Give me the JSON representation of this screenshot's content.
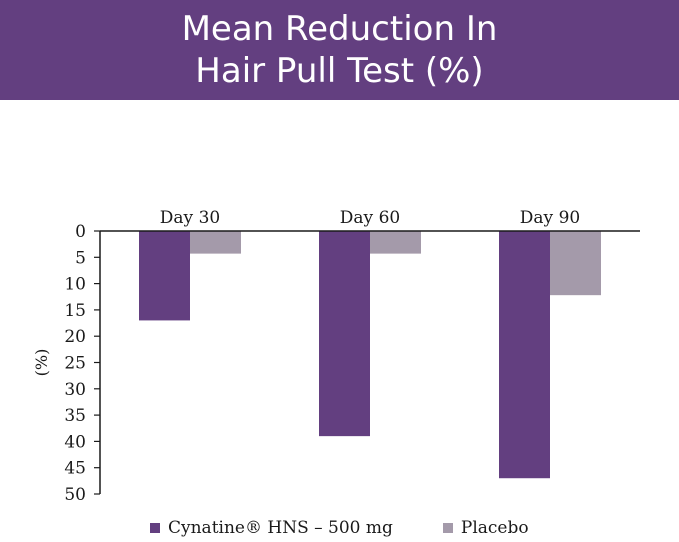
{
  "header": {
    "title_line1": "Mean Reduction In",
    "title_line2": "Hair Pull Test (%)"
  },
  "colors": {
    "banner": "#633f80",
    "series_primary": "#633f80",
    "series_placebo": "#a49aaa"
  },
  "chart_data": {
    "type": "bar",
    "title": "Mean Reduction In Hair Pull Test (%)",
    "categories": [
      "Day 30",
      "Day 60",
      "Day 90"
    ],
    "series": [
      {
        "name": "Cynatine® HNS – 500 mg",
        "values": [
          17,
          39,
          47
        ],
        "color": "#633f80"
      },
      {
        "name": "Placebo",
        "values": [
          4.3,
          4.3,
          12.2
        ],
        "color": "#a49aaa"
      }
    ],
    "ylabel": "(%)",
    "xlabel": "",
    "ylim": [
      0,
      50
    ],
    "y_inverted": true,
    "y_ticks": [
      0,
      5,
      10,
      15,
      20,
      25,
      30,
      35,
      40,
      45,
      50
    ],
    "category_labels_position": "top",
    "grid": false,
    "legend_position": "bottom"
  },
  "legend": {
    "items": [
      {
        "label": "Cynatine® HNS – 500 mg",
        "color": "#633f80"
      },
      {
        "label": "Placebo",
        "color": "#a49aaa"
      }
    ]
  }
}
